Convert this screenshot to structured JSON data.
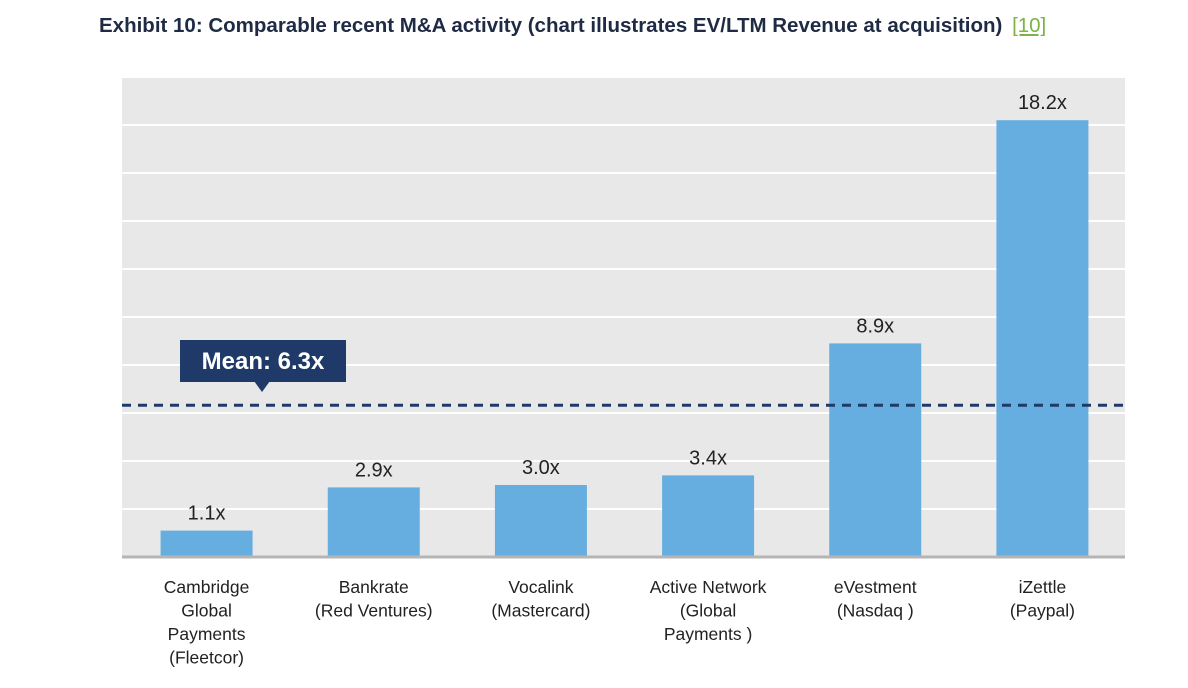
{
  "title": {
    "text": "Exhibit 10: Comparable recent M&A activity (chart illustrates EV/LTM Revenue at acquisition)",
    "ref": "[10]"
  },
  "colors": {
    "bar": "#66aee0",
    "mean_line": "#1f3a68",
    "mean_box": "#1f3a68",
    "plot_bg": "#e8e8e8",
    "title": "#1f2a44",
    "ref_link": "#7cb342"
  },
  "chart_data": {
    "type": "bar",
    "title": "Exhibit 10: Comparable recent M&A activity (chart illustrates EV/LTM Revenue at acquisition)",
    "categories": [
      [
        "Cambridge",
        "Global",
        "Payments",
        "(Fleetcor)"
      ],
      [
        "Bankrate",
        "(Red Ventures)"
      ],
      [
        "Vocalink",
        "(Mastercard)"
      ],
      [
        "Active Network",
        "(Global",
        "Payments )"
      ],
      [
        "eVestment",
        "(Nasdaq )"
      ],
      [
        "iZettle",
        "(Paypal)"
      ]
    ],
    "values": [
      1.1,
      2.9,
      3.0,
      3.4,
      8.9,
      18.2
    ],
    "value_labels": [
      "1.1x",
      "2.9x",
      "3.0x",
      "3.4x",
      "8.9x",
      "18.2x"
    ],
    "mean": {
      "value": 6.3,
      "label": "Mean: 6.3x",
      "style": "dashed"
    },
    "ylim": [
      0,
      20
    ],
    "grid": true,
    "xlabel": "",
    "ylabel": ""
  }
}
